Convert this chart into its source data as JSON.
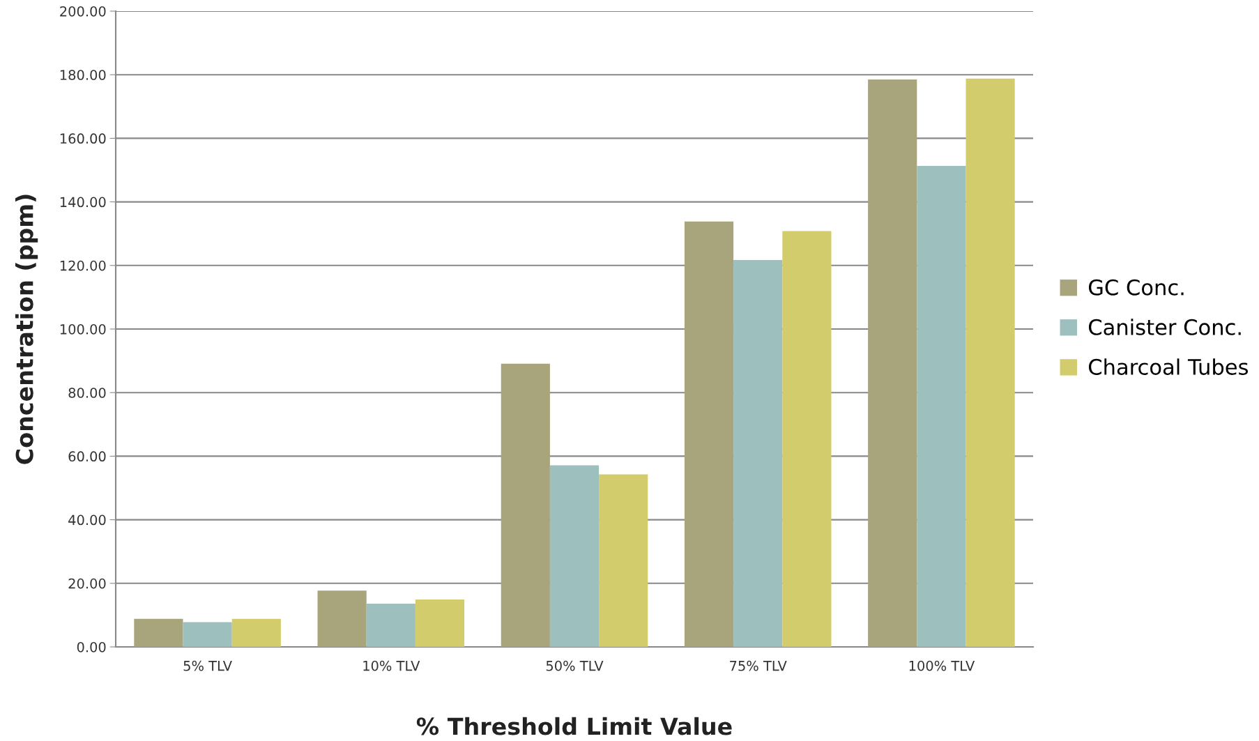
{
  "chart_data": {
    "type": "bar",
    "xlabel": "% Threshold Limit Value",
    "ylabel": "Concentration (ppm)",
    "categories": [
      "5% TLV",
      "10% TLV",
      "50% TLV",
      "75% TLV",
      "100% TLV"
    ],
    "series": [
      {
        "name": "GC Conc.",
        "color": "#a8a47c",
        "values": [
          8.8,
          17.7,
          89.1,
          133.8,
          178.5
        ]
      },
      {
        "name": "Canister Conc.",
        "color": "#9dbfbd",
        "values": [
          7.8,
          13.6,
          57.1,
          121.7,
          151.3
        ]
      },
      {
        "name": "Charcoal Tubes",
        "color": "#d3cc6c",
        "values": [
          8.8,
          14.9,
          54.3,
          130.8,
          178.8
        ]
      }
    ],
    "ylim": [
      0,
      200
    ],
    "yticks": [
      {
        "value": 0,
        "label": "0.00"
      },
      {
        "value": 20,
        "label": "20.00"
      },
      {
        "value": 40,
        "label": "40.00"
      },
      {
        "value": 60,
        "label": "60.00"
      },
      {
        "value": 80,
        "label": "80.00"
      },
      {
        "value": 100,
        "label": "100.00"
      },
      {
        "value": 120,
        "label": "120.00"
      },
      {
        "value": 140,
        "label": "140.00"
      },
      {
        "value": 160,
        "label": "160.00"
      },
      {
        "value": 180,
        "label": "180.00"
      },
      {
        "value": 200,
        "label": "200.00"
      }
    ],
    "grid": "y",
    "legend": "right"
  }
}
